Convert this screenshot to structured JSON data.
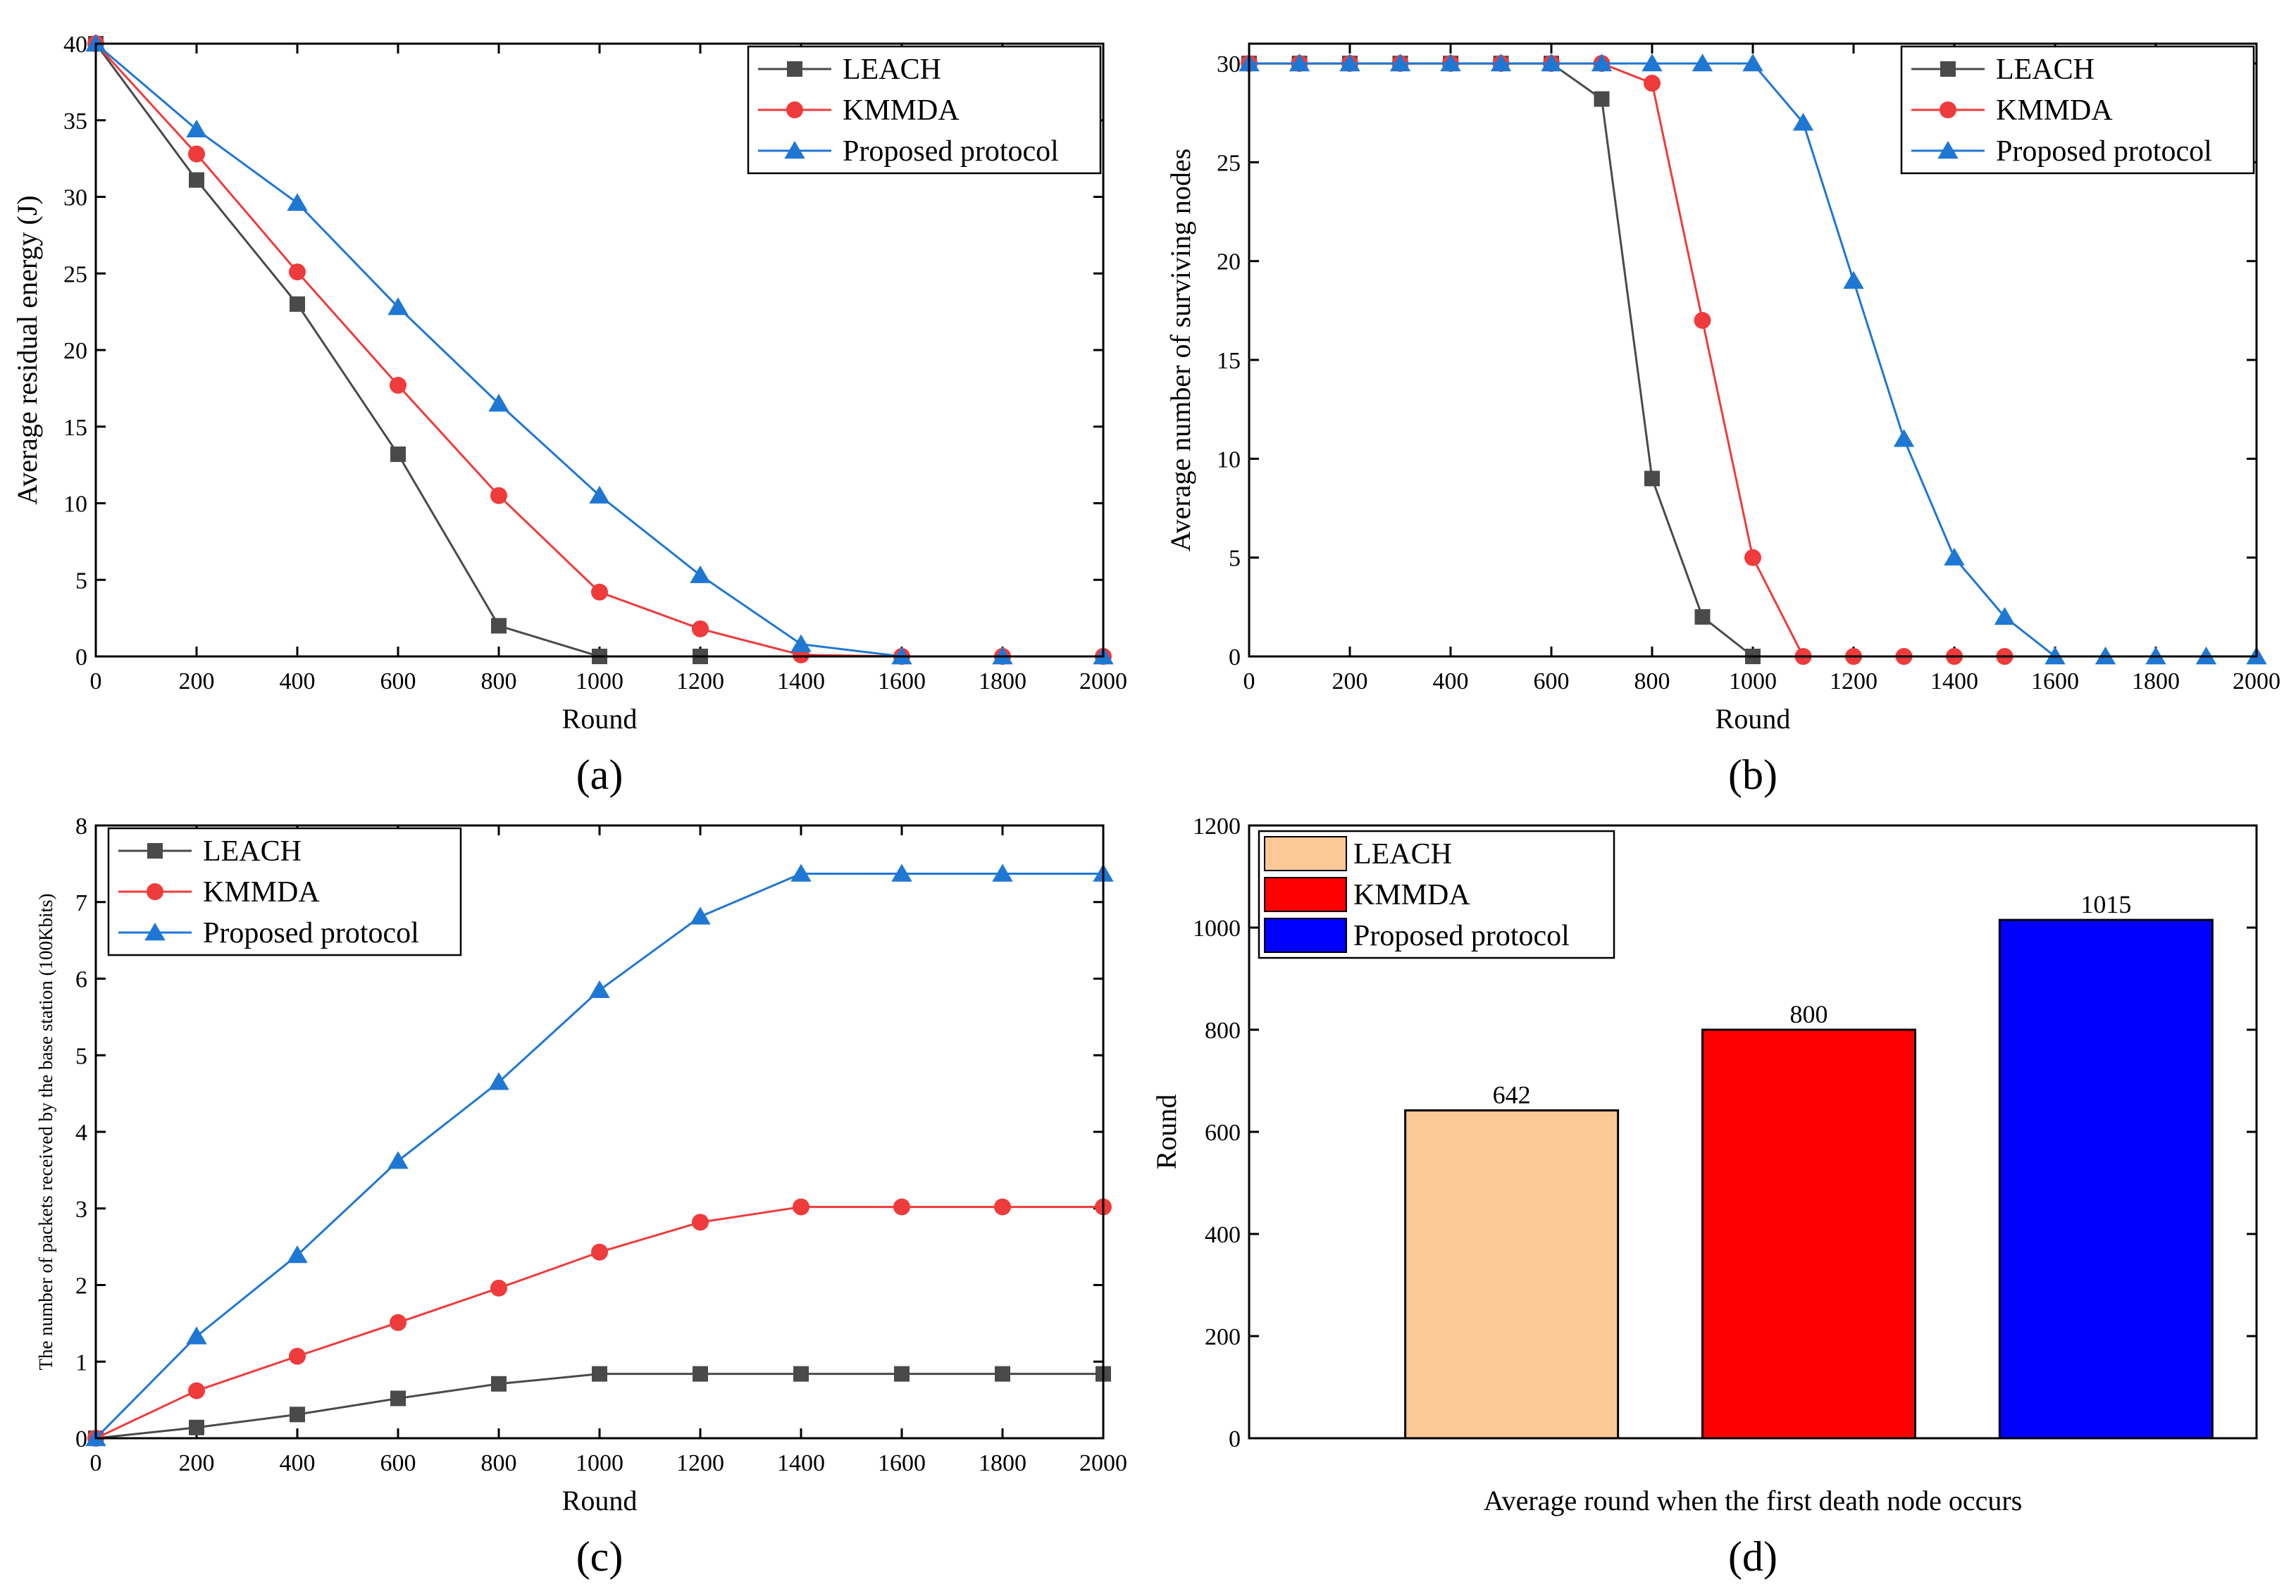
{
  "colors": {
    "LEACH": "#4a4a4a",
    "KMMDA": "#ef3b3b",
    "Proposed": "#1f77d4",
    "bar_LEACH": "#fcc896",
    "bar_KMMDA": "#ff0000",
    "bar_Proposed": "#0000ff"
  },
  "chart_data": [
    {
      "id": "a",
      "type": "line",
      "panel_label": "(a)",
      "xlabel": "Round",
      "ylabel": "Average residual energy (J)",
      "xlim": [
        0,
        2000
      ],
      "ylim": [
        0,
        40
      ],
      "xticks": [
        0,
        200,
        400,
        600,
        800,
        1000,
        1200,
        1400,
        1600,
        1800,
        2000
      ],
      "yticks": [
        0,
        5,
        10,
        15,
        20,
        25,
        30,
        35,
        40
      ],
      "legend": "top-right",
      "series": [
        {
          "name": "LEACH",
          "marker": "square",
          "color_key": "LEACH",
          "x": [
            0,
            200,
            400,
            600,
            800,
            1000,
            1200
          ],
          "y": [
            40,
            31.1,
            23.0,
            13.2,
            2.0,
            0,
            0
          ]
        },
        {
          "name": "KMMDA",
          "marker": "circle",
          "color_key": "KMMDA",
          "x": [
            0,
            200,
            400,
            600,
            800,
            1000,
            1200,
            1400,
            1600,
            1800,
            2000
          ],
          "y": [
            40,
            32.8,
            25.1,
            17.7,
            10.5,
            4.2,
            1.8,
            0.1,
            0,
            0,
            0
          ]
        },
        {
          "name": "Proposed protocol",
          "marker": "triangle",
          "color_key": "Proposed",
          "x": [
            0,
            200,
            400,
            600,
            800,
            1000,
            1200,
            1400,
            1600,
            1800,
            2000
          ],
          "y": [
            40,
            34.4,
            29.6,
            22.8,
            16.5,
            10.5,
            5.3,
            0.8,
            0,
            0,
            0
          ]
        }
      ]
    },
    {
      "id": "b",
      "type": "line",
      "panel_label": "(b)",
      "xlabel": "Round",
      "ylabel": "Average number of surviving nodes",
      "xlim": [
        0,
        2000
      ],
      "ylim": [
        0,
        31
      ],
      "xticks": [
        0,
        200,
        400,
        600,
        800,
        1000,
        1200,
        1400,
        1600,
        1800,
        2000
      ],
      "yticks": [
        0,
        5,
        10,
        15,
        20,
        25,
        30
      ],
      "legend": "top-right",
      "series": [
        {
          "name": "LEACH",
          "marker": "square",
          "color_key": "LEACH",
          "x": [
            0,
            100,
            200,
            300,
            400,
            500,
            600,
            700,
            800,
            900,
            1000
          ],
          "y": [
            30,
            30,
            30,
            30,
            30,
            30,
            30,
            28.2,
            9,
            2,
            0
          ]
        },
        {
          "name": "KMMDA",
          "marker": "circle",
          "color_key": "KMMDA",
          "x": [
            0,
            100,
            200,
            300,
            400,
            500,
            600,
            700,
            800,
            900,
            1000,
            1100,
            1200,
            1300,
            1400,
            1500
          ],
          "y": [
            30,
            30,
            30,
            30,
            30,
            30,
            30,
            30,
            29,
            17,
            5,
            0,
            0,
            0,
            0,
            0
          ]
        },
        {
          "name": "Proposed protocol",
          "marker": "triangle",
          "color_key": "Proposed",
          "x": [
            0,
            100,
            200,
            300,
            400,
            500,
            600,
            700,
            800,
            900,
            1000,
            1100,
            1200,
            1300,
            1400,
            1500,
            1600,
            1700,
            1800,
            1900,
            2000
          ],
          "y": [
            30,
            30,
            30,
            30,
            30,
            30,
            30,
            30,
            30,
            30,
            30,
            27,
            19,
            11,
            5,
            2,
            0,
            0,
            0,
            0,
            0
          ]
        }
      ]
    },
    {
      "id": "c",
      "type": "line",
      "panel_label": "(c)",
      "xlabel": "Round",
      "ylabel": "The number of packets received by the base station (100Kbits)",
      "xlim": [
        0,
        2000
      ],
      "ylim": [
        0,
        8
      ],
      "xticks": [
        0,
        200,
        400,
        600,
        800,
        1000,
        1200,
        1400,
        1600,
        1800,
        2000
      ],
      "yticks": [
        0,
        1,
        2,
        3,
        4,
        5,
        6,
        7,
        8
      ],
      "legend": "top-left",
      "series": [
        {
          "name": "LEACH",
          "marker": "square",
          "color_key": "LEACH",
          "x": [
            0,
            200,
            400,
            600,
            800,
            1000,
            1200,
            1400,
            1600,
            1800,
            2000
          ],
          "y": [
            0,
            0.14,
            0.31,
            0.52,
            0.71,
            0.84,
            0.84,
            0.84,
            0.84,
            0.84,
            0.84
          ]
        },
        {
          "name": "KMMDA",
          "marker": "circle",
          "color_key": "KMMDA",
          "x": [
            0,
            200,
            400,
            600,
            800,
            1000,
            1200,
            1400,
            1600,
            1800,
            2000
          ],
          "y": [
            0,
            0.62,
            1.07,
            1.51,
            1.96,
            2.43,
            2.82,
            3.02,
            3.02,
            3.02,
            3.02
          ]
        },
        {
          "name": "Proposed protocol",
          "marker": "triangle",
          "color_key": "Proposed",
          "x": [
            0,
            200,
            400,
            600,
            800,
            1000,
            1200,
            1400,
            1600,
            1800,
            2000
          ],
          "y": [
            0,
            1.33,
            2.39,
            3.62,
            4.65,
            5.85,
            6.81,
            7.37,
            7.37,
            7.37,
            7.37
          ]
        }
      ]
    },
    {
      "id": "d",
      "type": "bar",
      "panel_label": "(d)",
      "xlabel": "Average round when the first death node occurs",
      "ylabel": "Round",
      "ylim": [
        0,
        1200
      ],
      "yticks": [
        0,
        200,
        400,
        600,
        800,
        1000,
        1200
      ],
      "legend": "top-left",
      "categories": [
        "LEACH",
        "KMMDA",
        "Proposed protocol"
      ],
      "color_keys": [
        "bar_LEACH",
        "bar_KMMDA",
        "bar_Proposed"
      ],
      "values": [
        642,
        800,
        1015
      ],
      "data_labels": [
        "642",
        "800",
        "1015"
      ]
    }
  ]
}
